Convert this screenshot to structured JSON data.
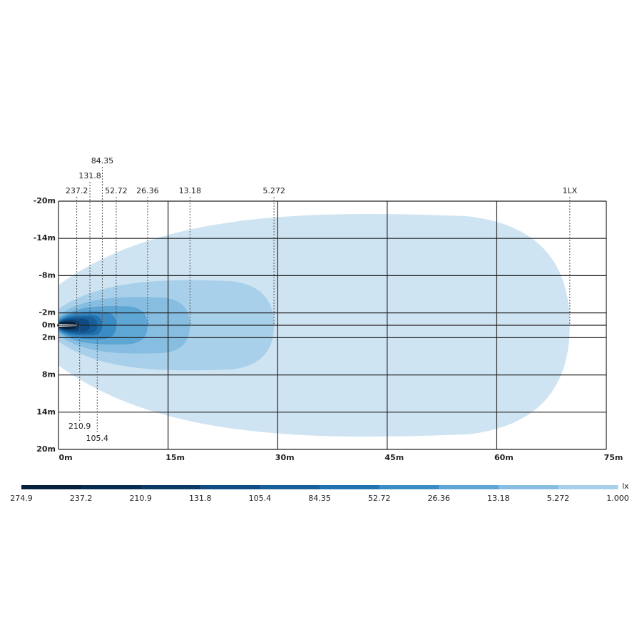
{
  "chart_data": {
    "type": "contour",
    "xlim": [
      0,
      75
    ],
    "ylim": [
      -20,
      20
    ],
    "y_inverted": true,
    "grid": true,
    "xticks": [
      {
        "value": 0,
        "label": "0m"
      },
      {
        "value": 15,
        "label": "15m"
      },
      {
        "value": 30,
        "label": "30m"
      },
      {
        "value": 45,
        "label": "45m"
      },
      {
        "value": 60,
        "label": "60m"
      },
      {
        "value": 75,
        "label": "75m"
      }
    ],
    "yticks": [
      {
        "value": -20,
        "label": "-20m"
      },
      {
        "value": -14,
        "label": "-14m"
      },
      {
        "value": -8,
        "label": "-8m"
      },
      {
        "value": -2,
        "label": "-2m"
      },
      {
        "value": 0,
        "label": "0m"
      },
      {
        "value": 2,
        "label": "2m"
      },
      {
        "value": 8,
        "label": "8m"
      },
      {
        "value": 14,
        "label": "14m"
      },
      {
        "value": 20,
        "label": "20m"
      }
    ],
    "contours": [
      {
        "lux": 1,
        "label": "1LX",
        "reach": 70,
        "half_width": 18.5,
        "color": "#cfe4f2",
        "label_position": "top"
      },
      {
        "lux": 5.272,
        "reach": 29.5,
        "half_width": 7.5,
        "color": "#a9d0ea",
        "label_position": "top"
      },
      {
        "lux": 13.18,
        "reach": 18,
        "half_width": 4.7,
        "color": "#86bde0",
        "label_position": "top"
      },
      {
        "lux": 26.36,
        "reach": 12.2,
        "half_width": 3.2,
        "color": "#5ea6d4",
        "label_position": "top"
      },
      {
        "lux": 52.72,
        "reach": 7.9,
        "half_width": 2.3,
        "color": "#3b8bc4",
        "label_position": "top"
      },
      {
        "lux": 84.35,
        "reach": 6,
        "half_width": 1.7,
        "color": "#2272b0",
        "label_position": "top"
      },
      {
        "lux": 105.4,
        "reach": 5.3,
        "half_width": 1.4,
        "color": "#175f9a",
        "label_position": "bottom"
      },
      {
        "lux": 131.8,
        "reach": 4.3,
        "half_width": 1.1,
        "color": "#0f4c83",
        "label_position": "top"
      },
      {
        "lux": 210.9,
        "reach": 2.9,
        "half_width": 0.8,
        "color": "#0a3a68",
        "label_position": "bottom"
      },
      {
        "lux": 237.2,
        "reach": 2.5,
        "half_width": 0.6,
        "color": "#072c52",
        "label_position": "top"
      }
    ],
    "colorbar": {
      "unit": "lx",
      "labels": [
        274.9,
        237.2,
        210.9,
        131.8,
        105.4,
        84.35,
        52.72,
        26.36,
        13.18,
        5.272,
        {
          "value": 1,
          "label": "1.000"
        }
      ],
      "colors": [
        "#061f3d",
        "#072c52",
        "#0a3a68",
        "#0f4c83",
        "#175f9a",
        "#2272b0",
        "#3b8bc4",
        "#5ea6d4",
        "#86bde0",
        "#a9d0ea"
      ]
    }
  }
}
